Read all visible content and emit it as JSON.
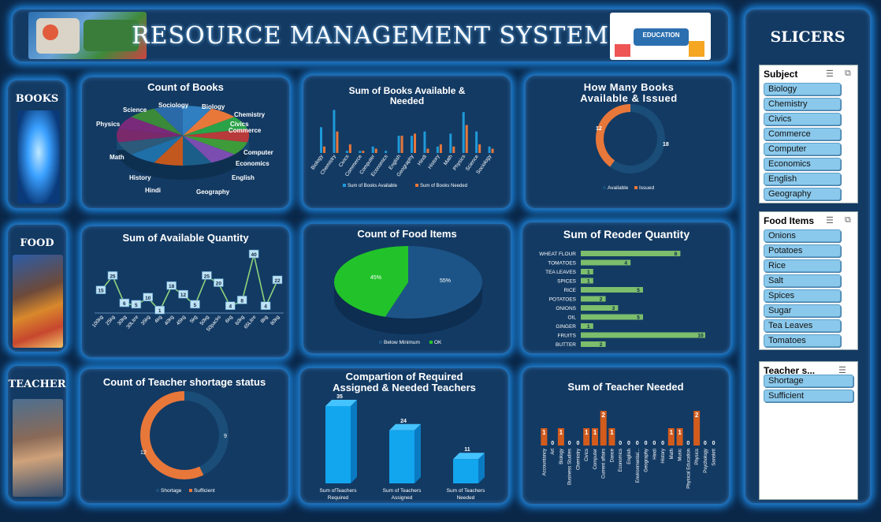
{
  "header": {
    "title": "RESOURCE MANAGEMENT SYSTEM"
  },
  "sections": {
    "books": "BOOKS",
    "food": "FOOD",
    "teacher": "TEACHER",
    "slicers": "SLICERS"
  },
  "colors": {
    "blue": "#1f9ad8",
    "orange": "#e8773a",
    "green": "#22c32a",
    "bar_green": "#7cbe6c",
    "teacher_orange": "#d35b1c",
    "dark_blue": "#1a4d78"
  },
  "books_count": {
    "title": "Count of Books",
    "chart_data": {
      "type": "pie",
      "labels": [
        "Biology",
        "Chemistry",
        "Civics",
        "Commerce",
        "Computer",
        "Economics",
        "English",
        "Geography",
        "Hindi",
        "History",
        "Math",
        "Physics",
        "Science",
        "Sociology"
      ]
    }
  },
  "books_sum": {
    "title_line1": "Sum of Books Available &",
    "title_line2": "Needed",
    "chart_data": {
      "type": "bar",
      "categories": [
        "Biology",
        "Chemistry",
        "Civics",
        "Commerce",
        "Computer",
        "Economics",
        "English",
        "Geography",
        "Hindi",
        "History",
        "Math",
        "Physics",
        "Science",
        "Sociology"
      ],
      "series": [
        {
          "name": "Sum of Books Available",
          "values": [
            12,
            20,
            1,
            1,
            3,
            1,
            8,
            8,
            10,
            3,
            9,
            19,
            10,
            3
          ]
        },
        {
          "name": "Sum of Books Needed",
          "values": [
            3,
            10,
            4,
            1,
            2,
            0,
            8,
            9,
            2,
            4,
            3,
            13,
            4,
            2
          ]
        }
      ]
    }
  },
  "books_issued": {
    "title_line1": "How Many Books",
    "title_line2": "Available & Issued",
    "chart_data": {
      "type": "pie",
      "labels": [
        "Available",
        "Issued"
      ],
      "values": [
        18,
        12
      ]
    }
  },
  "food_available": {
    "title": "Sum of Available Quantity",
    "chart_data": {
      "type": "line",
      "categories": [
        "100kg",
        "25kg",
        "30kg",
        "30Litre",
        "35kg",
        "4kg",
        "40kg",
        "45kg",
        "5kg",
        "50kg",
        "50packs",
        "6kg",
        "60kg",
        "65Litre",
        "8kg",
        "80kg"
      ],
      "values": [
        15,
        25,
        6,
        5,
        10,
        1,
        18,
        12,
        5,
        25,
        20,
        4,
        8,
        40,
        4,
        22
      ]
    }
  },
  "food_count": {
    "title": "Count of Food Items",
    "chart_data": {
      "type": "pie",
      "labels": [
        "Below Minimum",
        "OK"
      ],
      "values": [
        55,
        45
      ]
    },
    "slice_labels": [
      "55%",
      "45%"
    ]
  },
  "food_reorder": {
    "title": "Sum of Reoder Quantity",
    "chart_data": {
      "type": "bar",
      "categories": [
        "WHEAT FLOUR",
        "TOMATOES",
        "TEA LEAVES",
        "SPICES",
        "RICE",
        "POTATOES",
        "ONIONS",
        "OIL",
        "GINGER",
        "FRUITS",
        "BUTTER"
      ],
      "values": [
        8,
        4,
        1,
        1,
        5,
        2,
        3,
        5,
        1,
        10,
        2
      ]
    }
  },
  "teacher_status": {
    "title": "Count of Teacher shortage status",
    "chart_data": {
      "type": "pie",
      "labels": [
        "Shortage",
        "Sufficient"
      ],
      "values": [
        9,
        12
      ]
    }
  },
  "teacher_compare": {
    "title_line1": "Compartion of Required",
    "title_line2": "Assigned & Needed Teachers",
    "chart_data": {
      "type": "bar",
      "categories": [
        "Sum of Teachers Required",
        "Sum of Teachers Assigned",
        "Sum of Teachers Needed"
      ],
      "values": [
        35,
        24,
        11
      ]
    },
    "cat_lines": [
      [
        "Sum ofTeachers",
        "Required"
      ],
      [
        "Sum of Teachers",
        "Assigned"
      ],
      [
        "Sum of Teachers",
        "Needed"
      ]
    ]
  },
  "teacher_needed": {
    "title": "Sum of Teacher Needed",
    "chart_data": {
      "type": "bar",
      "categories": [
        "Accountancy",
        "Art",
        "Biology",
        "Business Studies",
        "Chemistry",
        "Civics",
        "Computer",
        "Current affairs",
        "Dance",
        "Economics",
        "English",
        "Environmental...",
        "Geography",
        "Hindi",
        "History",
        "Math",
        "Music",
        "Physical Education",
        "Physics",
        "Psychology",
        "Sanskrit"
      ],
      "values": [
        1,
        0,
        1,
        0,
        0,
        1,
        1,
        2,
        1,
        0,
        0,
        0,
        0,
        0,
        0,
        1,
        1,
        0,
        2,
        0,
        0
      ]
    }
  },
  "slicers": [
    {
      "title": "Subject",
      "items": [
        "Biology",
        "Chemistry",
        "Civics",
        "Commerce",
        "Computer",
        "Economics",
        "English",
        "Geography"
      ]
    },
    {
      "title": "Food Items",
      "items": [
        "Onions",
        "Potatoes",
        "Rice",
        "Salt",
        "Spices",
        "Sugar",
        "Tea Leaves",
        "Tomatoes"
      ]
    },
    {
      "title": "Teacher  s...",
      "items": [
        "Shortage",
        "Sufficient"
      ]
    }
  ],
  "images": {
    "education_logo": "EDUCATION"
  }
}
